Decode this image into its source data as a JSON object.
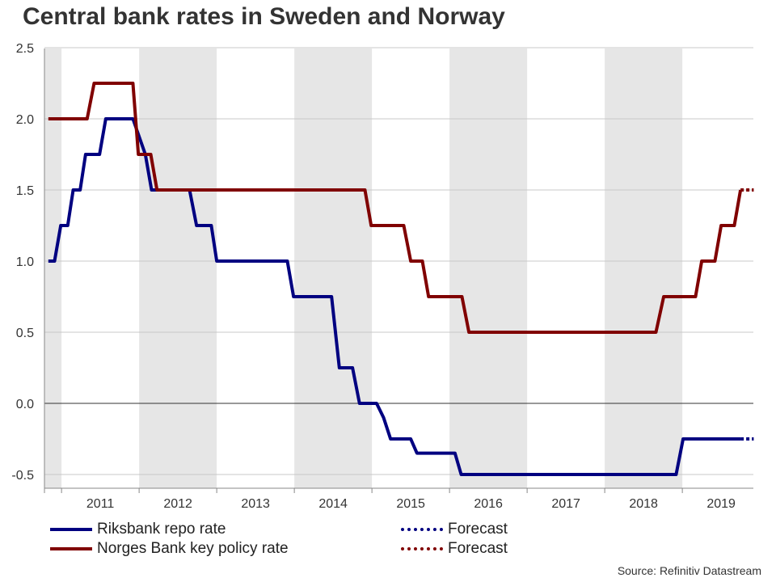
{
  "chart_data": {
    "type": "line",
    "title": "Central bank rates in Sweden and Norway",
    "xlim": [
      2010.78,
      2019.92
    ],
    "ylim": [
      -0.6,
      2.5
    ],
    "yticks": [
      2.5,
      2.0,
      1.5,
      1.0,
      0.5,
      0.0,
      -0.5
    ],
    "ytick_labels": [
      "2.5",
      "2.0",
      "1.5",
      "1.0",
      "0.5",
      "0.0",
      "-0.5"
    ],
    "xtick_labels": [
      "2011",
      "2012",
      "2013",
      "2014",
      "2015",
      "2016",
      "2017",
      "2018",
      "2019"
    ],
    "shaded_years": [
      2010,
      2012,
      2014,
      2016,
      2018
    ],
    "grid": "horizontal",
    "source": "Source: Refinitiv Datastream",
    "series": [
      {
        "name": "Riksbank repo rate",
        "color": "#000080",
        "points": [
          [
            2010.83,
            1.0
          ],
          [
            2010.91,
            1.0
          ],
          [
            2010.99,
            1.25
          ],
          [
            2011.08,
            1.25
          ],
          [
            2011.15,
            1.5
          ],
          [
            2011.24,
            1.5
          ],
          [
            2011.31,
            1.75
          ],
          [
            2011.49,
            1.75
          ],
          [
            2011.57,
            2.0
          ],
          [
            2011.92,
            2.0
          ],
          [
            2012.08,
            1.75
          ],
          [
            2012.16,
            1.5
          ],
          [
            2012.65,
            1.5
          ],
          [
            2012.74,
            1.25
          ],
          [
            2012.93,
            1.25
          ],
          [
            2013.0,
            1.0
          ],
          [
            2013.91,
            1.0
          ],
          [
            2013.99,
            0.75
          ],
          [
            2014.48,
            0.75
          ],
          [
            2014.58,
            0.25
          ],
          [
            2014.75,
            0.25
          ],
          [
            2014.84,
            0.0
          ],
          [
            2015.06,
            0.0
          ],
          [
            2015.15,
            -0.1
          ],
          [
            2015.24,
            -0.25
          ],
          [
            2015.5,
            -0.25
          ],
          [
            2015.58,
            -0.35
          ],
          [
            2016.07,
            -0.35
          ],
          [
            2016.15,
            -0.5
          ],
          [
            2018.92,
            -0.5
          ],
          [
            2019.01,
            -0.25
          ],
          [
            2019.75,
            -0.25
          ]
        ],
        "forecast": {
          "name": "Forecast",
          "points": [
            [
              2019.75,
              -0.25
            ],
            [
              2019.92,
              -0.25
            ]
          ]
        }
      },
      {
        "name": "Norges Bank key policy rate",
        "color": "#800000",
        "points": [
          [
            2010.83,
            2.0
          ],
          [
            2011.33,
            2.0
          ],
          [
            2011.42,
            2.25
          ],
          [
            2011.92,
            2.25
          ],
          [
            2011.99,
            1.75
          ],
          [
            2012.15,
            1.75
          ],
          [
            2012.23,
            1.5
          ],
          [
            2014.91,
            1.5
          ],
          [
            2014.99,
            1.25
          ],
          [
            2015.41,
            1.25
          ],
          [
            2015.5,
            1.0
          ],
          [
            2015.65,
            1.0
          ],
          [
            2015.73,
            0.75
          ],
          [
            2016.16,
            0.75
          ],
          [
            2016.25,
            0.5
          ],
          [
            2018.66,
            0.5
          ],
          [
            2018.76,
            0.75
          ],
          [
            2019.17,
            0.75
          ],
          [
            2019.25,
            1.0
          ],
          [
            2019.42,
            1.0
          ],
          [
            2019.5,
            1.25
          ],
          [
            2019.67,
            1.25
          ],
          [
            2019.75,
            1.5
          ]
        ],
        "forecast": {
          "name": "Forecast",
          "points": [
            [
              2019.75,
              1.5
            ],
            [
              2019.92,
              1.5
            ]
          ]
        }
      }
    ]
  }
}
